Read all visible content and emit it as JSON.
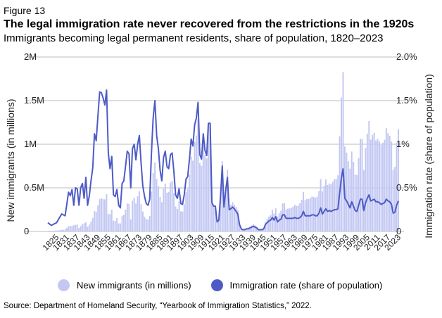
{
  "figure_label": "Figure 13",
  "title": "The legal immigration rate never recovered from the restrictions in the 1920s",
  "subtitle": "Immigrants becoming legal permanent residents, share of population, 1820–2023",
  "source": "Source: Department of Homeland Security, “Yearbook of Immigration Statistics,” 2022.",
  "colors": {
    "bars": "#c3c8f3",
    "line": "#4e5bc6",
    "grid": "#bdbdbd"
  },
  "chart_data": {
    "type": "bar+line",
    "x_start_year": 1820,
    "x_end_year": 2023,
    "ylabel_left": "New immigrants (in millions)",
    "ylabel_right": "Immigration rate (share of population)",
    "ylim_left": [
      0,
      2000000
    ],
    "ylim_right": [
      0,
      2.0
    ],
    "left_ticks": [
      "0",
      "0.5M",
      "1M",
      "1.5M",
      "2M"
    ],
    "right_ticks": [
      "0",
      "0.5%",
      "1%",
      "1.5%",
      "2.0%"
    ],
    "x_tick_labels": [
      "1825",
      "1831",
      "1837",
      "1843",
      "1849",
      "1855",
      "1861",
      "1867",
      "1873",
      "1879",
      "1885",
      "1891",
      "1897",
      "1903",
      "1909",
      "1915",
      "1921",
      "1927",
      "1933",
      "1939",
      "1945",
      "1951",
      "1957",
      "1963",
      "1969",
      "1975",
      "1981",
      "1987",
      "1993",
      "1999",
      "2005",
      "2011",
      "2017",
      "2023"
    ],
    "bar_anchors": [
      [
        1820,
        8000
      ],
      [
        1825,
        10000
      ],
      [
        1830,
        23000
      ],
      [
        1832,
        60000
      ],
      [
        1834,
        65000
      ],
      [
        1836,
        76000
      ],
      [
        1837,
        79000
      ],
      [
        1838,
        39000
      ],
      [
        1840,
        84000
      ],
      [
        1842,
        104000
      ],
      [
        1843,
        52000
      ],
      [
        1844,
        78000
      ],
      [
        1845,
        114000
      ],
      [
        1846,
        154000
      ],
      [
        1847,
        235000
      ],
      [
        1848,
        226000
      ],
      [
        1849,
        297000
      ],
      [
        1850,
        370000
      ],
      [
        1851,
        380000
      ],
      [
        1852,
        370000
      ],
      [
        1853,
        368000
      ],
      [
        1854,
        428000
      ],
      [
        1855,
        200000
      ],
      [
        1856,
        200000
      ],
      [
        1857,
        251000
      ],
      [
        1858,
        123000
      ],
      [
        1859,
        121000
      ],
      [
        1860,
        153000
      ],
      [
        1861,
        92000
      ],
      [
        1862,
        92000
      ],
      [
        1863,
        176000
      ],
      [
        1864,
        193000
      ],
      [
        1865,
        249000
      ],
      [
        1866,
        319000
      ],
      [
        1867,
        316000
      ],
      [
        1868,
        139000
      ],
      [
        1869,
        353000
      ],
      [
        1870,
        387000
      ],
      [
        1871,
        321000
      ],
      [
        1872,
        405000
      ],
      [
        1873,
        460000
      ],
      [
        1874,
        313000
      ],
      [
        1875,
        228000
      ],
      [
        1876,
        170000
      ],
      [
        1877,
        142000
      ],
      [
        1878,
        138000
      ],
      [
        1879,
        178000
      ],
      [
        1880,
        457000
      ],
      [
        1881,
        669000
      ],
      [
        1882,
        789000
      ],
      [
        1883,
        603000
      ],
      [
        1884,
        519000
      ],
      [
        1885,
        395000
      ],
      [
        1886,
        334000
      ],
      [
        1887,
        490000
      ],
      [
        1888,
        547000
      ],
      [
        1889,
        444000
      ],
      [
        1890,
        455000
      ],
      [
        1891,
        560000
      ],
      [
        1892,
        580000
      ],
      [
        1893,
        440000
      ],
      [
        1894,
        286000
      ],
      [
        1895,
        259000
      ],
      [
        1896,
        343000
      ],
      [
        1897,
        231000
      ],
      [
        1898,
        229000
      ],
      [
        1899,
        312000
      ],
      [
        1900,
        449000
      ],
      [
        1901,
        488000
      ],
      [
        1902,
        649000
      ],
      [
        1903,
        857000
      ],
      [
        1904,
        812000
      ],
      [
        1905,
        1026000
      ],
      [
        1906,
        1100000
      ],
      [
        1907,
        1285000
      ],
      [
        1908,
        782000
      ],
      [
        1909,
        751000
      ],
      [
        1910,
        1041000
      ],
      [
        1911,
        878000
      ],
      [
        1912,
        838000
      ],
      [
        1913,
        1197000
      ],
      [
        1914,
        1218000
      ],
      [
        1915,
        326000
      ],
      [
        1916,
        298000
      ],
      [
        1917,
        295000
      ],
      [
        1918,
        111000
      ],
      [
        1919,
        141000
      ],
      [
        1920,
        430000
      ],
      [
        1921,
        805000
      ],
      [
        1922,
        309000
      ],
      [
        1923,
        523000
      ],
      [
        1924,
        707000
      ],
      [
        1925,
        294000
      ],
      [
        1926,
        304000
      ],
      [
        1927,
        335000
      ],
      [
        1928,
        307000
      ],
      [
        1929,
        280000
      ],
      [
        1930,
        242000
      ],
      [
        1931,
        97000
      ],
      [
        1932,
        36000
      ],
      [
        1933,
        23000
      ],
      [
        1934,
        29000
      ],
      [
        1935,
        35000
      ],
      [
        1936,
        36000
      ],
      [
        1937,
        50000
      ],
      [
        1938,
        68000
      ],
      [
        1939,
        83000
      ],
      [
        1940,
        71000
      ],
      [
        1941,
        52000
      ],
      [
        1942,
        29000
      ],
      [
        1943,
        24000
      ],
      [
        1944,
        29000
      ],
      [
        1945,
        38000
      ],
      [
        1946,
        109000
      ],
      [
        1947,
        147000
      ],
      [
        1948,
        171000
      ],
      [
        1949,
        188000
      ],
      [
        1950,
        249000
      ],
      [
        1951,
        206000
      ],
      [
        1952,
        265000
      ],
      [
        1953,
        170000
      ],
      [
        1954,
        208000
      ],
      [
        1955,
        238000
      ],
      [
        1956,
        322000
      ],
      [
        1957,
        327000
      ],
      [
        1958,
        253000
      ],
      [
        1959,
        261000
      ],
      [
        1960,
        265000
      ],
      [
        1961,
        271000
      ],
      [
        1962,
        284000
      ],
      [
        1963,
        306000
      ],
      [
        1964,
        292000
      ],
      [
        1965,
        297000
      ],
      [
        1966,
        323000
      ],
      [
        1967,
        362000
      ],
      [
        1968,
        454000
      ],
      [
        1969,
        359000
      ],
      [
        1970,
        373000
      ],
      [
        1971,
        370000
      ],
      [
        1972,
        385000
      ],
      [
        1973,
        400000
      ],
      [
        1974,
        395000
      ],
      [
        1975,
        386000
      ],
      [
        1976,
        399000
      ],
      [
        1977,
        462000
      ],
      [
        1978,
        601000
      ],
      [
        1979,
        460000
      ],
      [
        1980,
        524000
      ],
      [
        1981,
        595000
      ],
      [
        1982,
        533000
      ],
      [
        1983,
        550000
      ],
      [
        1984,
        543000
      ],
      [
        1985,
        570000
      ],
      [
        1986,
        601000
      ],
      [
        1987,
        601000
      ],
      [
        1988,
        643000
      ],
      [
        1989,
        1090000
      ],
      [
        1990,
        1536000
      ],
      [
        1991,
        1827000
      ],
      [
        1992,
        974000
      ],
      [
        1993,
        904000
      ],
      [
        1994,
        804000
      ],
      [
        1995,
        720000
      ],
      [
        1996,
        916000
      ],
      [
        1997,
        798000
      ],
      [
        1998,
        654000
      ],
      [
        1999,
        646000
      ],
      [
        2000,
        841000
      ],
      [
        2001,
        1059000
      ],
      [
        2002,
        1059000
      ],
      [
        2003,
        704000
      ],
      [
        2004,
        958000
      ],
      [
        2005,
        1122000
      ],
      [
        2006,
        1266000
      ],
      [
        2007,
        1052000
      ],
      [
        2008,
        1107000
      ],
      [
        2009,
        1131000
      ],
      [
        2010,
        1043000
      ],
      [
        2011,
        1062000
      ],
      [
        2012,
        1031000
      ],
      [
        2013,
        991000
      ],
      [
        2014,
        1017000
      ],
      [
        2015,
        1051000
      ],
      [
        2016,
        1183000
      ],
      [
        2017,
        1127000
      ],
      [
        2018,
        1097000
      ],
      [
        2019,
        1031000
      ],
      [
        2020,
        707000
      ],
      [
        2021,
        740000
      ],
      [
        2022,
        1018000
      ],
      [
        2023,
        1173000
      ]
    ],
    "rate_anchors": [
      [
        1820,
        0.1
      ],
      [
        1822,
        0.07
      ],
      [
        1825,
        0.1
      ],
      [
        1828,
        0.2
      ],
      [
        1830,
        0.18
      ],
      [
        1832,
        0.45
      ],
      [
        1833,
        0.41
      ],
      [
        1834,
        0.48
      ],
      [
        1835,
        0.3
      ],
      [
        1836,
        0.5
      ],
      [
        1837,
        0.49
      ],
      [
        1838,
        0.3
      ],
      [
        1839,
        0.5
      ],
      [
        1840,
        0.55
      ],
      [
        1841,
        0.38
      ],
      [
        1842,
        0.62
      ],
      [
        1843,
        0.3
      ],
      [
        1844,
        0.41
      ],
      [
        1845,
        0.58
      ],
      [
        1846,
        0.73
      ],
      [
        1847,
        1.12
      ],
      [
        1848,
        1.04
      ],
      [
        1849,
        1.32
      ],
      [
        1850,
        1.6
      ],
      [
        1851,
        1.59
      ],
      [
        1852,
        1.53
      ],
      [
        1853,
        1.45
      ],
      [
        1854,
        1.62
      ],
      [
        1855,
        0.9
      ],
      [
        1856,
        0.72
      ],
      [
        1857,
        0.86
      ],
      [
        1858,
        0.42
      ],
      [
        1859,
        0.4
      ],
      [
        1860,
        0.48
      ],
      [
        1861,
        0.3
      ],
      [
        1862,
        0.27
      ],
      [
        1863,
        0.55
      ],
      [
        1864,
        0.58
      ],
      [
        1865,
        0.75
      ],
      [
        1866,
        0.92
      ],
      [
        1867,
        0.89
      ],
      [
        1868,
        0.5
      ],
      [
        1869,
        0.95
      ],
      [
        1870,
        1.0
      ],
      [
        1871,
        0.82
      ],
      [
        1872,
        1.0
      ],
      [
        1873,
        1.1
      ],
      [
        1874,
        0.78
      ],
      [
        1875,
        0.52
      ],
      [
        1876,
        0.4
      ],
      [
        1877,
        0.32
      ],
      [
        1878,
        0.3
      ],
      [
        1879,
        0.37
      ],
      [
        1880,
        0.9
      ],
      [
        1881,
        1.3
      ],
      [
        1882,
        1.5
      ],
      [
        1883,
        1.1
      ],
      [
        1884,
        0.95
      ],
      [
        1885,
        0.7
      ],
      [
        1886,
        0.58
      ],
      [
        1887,
        0.85
      ],
      [
        1888,
        0.92
      ],
      [
        1889,
        0.74
      ],
      [
        1890,
        0.72
      ],
      [
        1891,
        0.88
      ],
      [
        1892,
        0.9
      ],
      [
        1893,
        0.68
      ],
      [
        1894,
        0.42
      ],
      [
        1895,
        0.38
      ],
      [
        1896,
        0.49
      ],
      [
        1897,
        0.32
      ],
      [
        1898,
        0.31
      ],
      [
        1899,
        0.42
      ],
      [
        1900,
        0.6
      ],
      [
        1901,
        0.63
      ],
      [
        1902,
        0.83
      ],
      [
        1903,
        1.06
      ],
      [
        1904,
        0.98
      ],
      [
        1905,
        1.22
      ],
      [
        1906,
        1.3
      ],
      [
        1907,
        1.48
      ],
      [
        1908,
        0.88
      ],
      [
        1909,
        0.83
      ],
      [
        1910,
        1.12
      ],
      [
        1911,
        0.93
      ],
      [
        1912,
        0.87
      ],
      [
        1913,
        1.24
      ],
      [
        1914,
        1.24
      ],
      [
        1915,
        0.33
      ],
      [
        1916,
        0.29
      ],
      [
        1917,
        0.29
      ],
      [
        1918,
        0.11
      ],
      [
        1919,
        0.13
      ],
      [
        1920,
        0.4
      ],
      [
        1921,
        0.75
      ],
      [
        1922,
        0.28
      ],
      [
        1923,
        0.47
      ],
      [
        1924,
        0.62
      ],
      [
        1925,
        0.25
      ],
      [
        1926,
        0.26
      ],
      [
        1927,
        0.28
      ],
      [
        1928,
        0.26
      ],
      [
        1929,
        0.23
      ],
      [
        1930,
        0.2
      ],
      [
        1931,
        0.08
      ],
      [
        1932,
        0.03
      ],
      [
        1933,
        0.02
      ],
      [
        1934,
        0.02
      ],
      [
        1935,
        0.03
      ],
      [
        1936,
        0.03
      ],
      [
        1937,
        0.04
      ],
      [
        1938,
        0.05
      ],
      [
        1939,
        0.06
      ],
      [
        1940,
        0.05
      ],
      [
        1941,
        0.04
      ],
      [
        1942,
        0.02
      ],
      [
        1943,
        0.02
      ],
      [
        1944,
        0.02
      ],
      [
        1945,
        0.03
      ],
      [
        1946,
        0.08
      ],
      [
        1947,
        0.1
      ],
      [
        1948,
        0.12
      ],
      [
        1949,
        0.13
      ],
      [
        1950,
        0.16
      ],
      [
        1951,
        0.13
      ],
      [
        1952,
        0.17
      ],
      [
        1953,
        0.11
      ],
      [
        1954,
        0.13
      ],
      [
        1955,
        0.14
      ],
      [
        1956,
        0.19
      ],
      [
        1957,
        0.19
      ],
      [
        1958,
        0.15
      ],
      [
        1959,
        0.15
      ],
      [
        1960,
        0.15
      ],
      [
        1961,
        0.15
      ],
      [
        1962,
        0.15
      ],
      [
        1963,
        0.16
      ],
      [
        1964,
        0.15
      ],
      [
        1965,
        0.15
      ],
      [
        1966,
        0.16
      ],
      [
        1967,
        0.18
      ],
      [
        1968,
        0.23
      ],
      [
        1969,
        0.18
      ],
      [
        1970,
        0.18
      ],
      [
        1971,
        0.18
      ],
      [
        1972,
        0.18
      ],
      [
        1973,
        0.19
      ],
      [
        1974,
        0.19
      ],
      [
        1975,
        0.18
      ],
      [
        1976,
        0.18
      ],
      [
        1977,
        0.21
      ],
      [
        1978,
        0.27
      ],
      [
        1979,
        0.2
      ],
      [
        1980,
        0.23
      ],
      [
        1981,
        0.26
      ],
      [
        1982,
        0.23
      ],
      [
        1983,
        0.24
      ],
      [
        1984,
        0.23
      ],
      [
        1985,
        0.24
      ],
      [
        1986,
        0.25
      ],
      [
        1987,
        0.25
      ],
      [
        1988,
        0.26
      ],
      [
        1989,
        0.44
      ],
      [
        1990,
        0.61
      ],
      [
        1991,
        0.72
      ],
      [
        1992,
        0.38
      ],
      [
        1993,
        0.35
      ],
      [
        1994,
        0.31
      ],
      [
        1995,
        0.27
      ],
      [
        1996,
        0.34
      ],
      [
        1997,
        0.29
      ],
      [
        1998,
        0.24
      ],
      [
        1999,
        0.23
      ],
      [
        2000,
        0.3
      ],
      [
        2001,
        0.37
      ],
      [
        2002,
        0.37
      ],
      [
        2003,
        0.24
      ],
      [
        2004,
        0.33
      ],
      [
        2005,
        0.38
      ],
      [
        2006,
        0.42
      ],
      [
        2007,
        0.35
      ],
      [
        2008,
        0.36
      ],
      [
        2009,
        0.37
      ],
      [
        2010,
        0.34
      ],
      [
        2011,
        0.34
      ],
      [
        2012,
        0.33
      ],
      [
        2013,
        0.31
      ],
      [
        2014,
        0.32
      ],
      [
        2015,
        0.33
      ],
      [
        2016,
        0.37
      ],
      [
        2017,
        0.35
      ],
      [
        2018,
        0.34
      ],
      [
        2019,
        0.31
      ],
      [
        2020,
        0.21
      ],
      [
        2021,
        0.22
      ],
      [
        2022,
        0.3
      ],
      [
        2023,
        0.35
      ]
    ]
  },
  "legend": {
    "bars_label": "New immigrants (in millions)",
    "line_label": "Immigration rate (share of population)"
  }
}
